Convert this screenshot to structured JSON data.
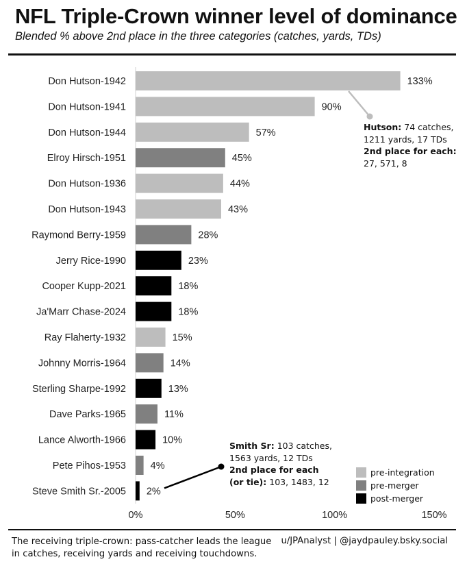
{
  "header": {
    "title": "NFL Triple-Crown winner level of dominance",
    "subtitle": "Blended % above 2nd place in the three categories (catches, yards, TDs)"
  },
  "colors": {
    "pre-integration": "#bdbdbd",
    "pre-merger": "#808080",
    "post-merger": "#000000"
  },
  "chart_data": {
    "type": "bar",
    "orientation": "horizontal",
    "title": "NFL Triple-Crown winner level of dominance",
    "subtitle": "Blended % above 2nd place in the three categories (catches, yards, TDs)",
    "xlabel": "",
    "ylabel": "",
    "xlim": [
      0,
      150
    ],
    "x_ticks": [
      0,
      50,
      100,
      150
    ],
    "x_tick_labels": [
      "0%",
      "50%",
      "100%",
      "150%"
    ],
    "categories": [
      "Don Hutson-1942",
      "Don Hutson-1941",
      "Don Hutson-1944",
      "Elroy Hirsch-1951",
      "Don Hutson-1936",
      "Don Hutson-1943",
      "Raymond Berry-1959",
      "Jerry Rice-1990",
      "Cooper Kupp-2021",
      "Ja'Marr Chase-2024",
      "Ray Flaherty-1932",
      "Johnny Morris-1964",
      "Sterling Sharpe-1992",
      "Dave Parks-1965",
      "Lance Alworth-1966",
      "Pete Pihos-1953",
      "Steve Smith Sr.-2005"
    ],
    "values": [
      133,
      90,
      57,
      45,
      44,
      43,
      28,
      23,
      18,
      18,
      15,
      14,
      13,
      11,
      10,
      4,
      2
    ],
    "value_labels": [
      "133%",
      "90%",
      "57%",
      "45%",
      "44%",
      "43%",
      "28%",
      "23%",
      "18%",
      "18%",
      "15%",
      "14%",
      "13%",
      "11%",
      "10%",
      "4%",
      "2%"
    ],
    "groups": [
      "pre-integration",
      "pre-integration",
      "pre-integration",
      "pre-merger",
      "pre-integration",
      "pre-integration",
      "pre-merger",
      "post-merger",
      "post-merger",
      "post-merger",
      "pre-integration",
      "pre-merger",
      "post-merger",
      "pre-merger",
      "post-merger",
      "pre-merger",
      "post-merger"
    ],
    "legend": {
      "placement": "bottom-right",
      "entries": [
        "pre-integration",
        "pre-merger",
        "post-merger"
      ]
    },
    "annotations": [
      {
        "target": "Don Hutson-1942",
        "bold1": "Hutson:",
        "text1": " 74 catches, 1211 yards, 17 TDs",
        "bold2": "2nd place for each:",
        "text2": " 27, 571, 8"
      },
      {
        "target": "Steve Smith Sr.-2005",
        "bold1": "Smith Sr:",
        "text1": " 103 catches, 1563 yards, 12 TDs",
        "bold2": "2nd place for each (or tie):",
        "text2": " 103, 1483, 12"
      }
    ]
  },
  "footer": {
    "note": "The receiving triple-crown: pass-catcher leads the league in catches, receiving yards and receiving touchdowns.",
    "credit": "u/JPAnalyst | @jaydpauley.bsky.social"
  }
}
